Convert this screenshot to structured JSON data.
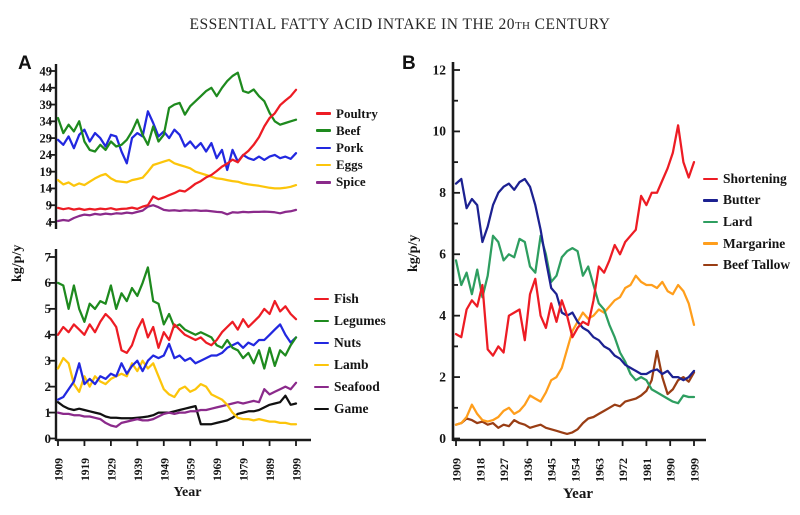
{
  "title": {
    "part1": "ESSENTIAL FATTY ACID INTAKE IN THE 20",
    "th": "TH",
    "part2": " CENTURY"
  },
  "panels": [
    {
      "label": "A",
      "ylabel": "kg/p/y",
      "xlabel": "Year"
    },
    {
      "label": "B",
      "ylabel": "kg/p/y",
      "xlabel": "Year"
    }
  ],
  "axis_color": "#1a1a1a",
  "chart_data": [
    {
      "id": "a-top",
      "panel": "A",
      "type": "line",
      "ylabel": "kg/p/y",
      "xlabel": "Year",
      "ylim": [
        4,
        49
      ],
      "y_ticks": [
        4,
        9,
        14,
        19,
        24,
        29,
        34,
        39,
        44,
        49
      ],
      "x_ticks": [
        1909,
        1919,
        1929,
        1939,
        1949,
        1959,
        1969,
        1979,
        1989,
        1999
      ],
      "x": [
        1909,
        1911,
        1913,
        1915,
        1917,
        1919,
        1921,
        1923,
        1925,
        1927,
        1929,
        1931,
        1933,
        1935,
        1937,
        1939,
        1941,
        1943,
        1945,
        1947,
        1949,
        1951,
        1953,
        1955,
        1957,
        1959,
        1961,
        1963,
        1965,
        1967,
        1969,
        1971,
        1973,
        1975,
        1977,
        1979,
        1981,
        1983,
        1985,
        1987,
        1989,
        1991,
        1993,
        1995,
        1997,
        1999
      ],
      "series": [
        {
          "name": "Poultry",
          "color": "#ed1c24",
          "values": [
            8.2,
            7.8,
            8.1,
            7.7,
            8.0,
            7.6,
            7.9,
            7.7,
            8.0,
            7.8,
            8.1,
            7.7,
            7.9,
            8.0,
            8.3,
            7.9,
            8.6,
            9.0,
            11.6,
            10.8,
            11.3,
            12.0,
            12.6,
            13.4,
            13.1,
            14.2,
            15.4,
            16.2,
            17.3,
            18.0,
            19.2,
            20.5,
            21.4,
            22.6,
            21.8,
            23.9,
            25.2,
            27.0,
            29.3,
            32.5,
            35.0,
            36.4,
            38.8,
            40.2,
            41.5,
            43.4
          ]
        },
        {
          "name": "Beef",
          "color": "#1e8a1e",
          "values": [
            35.0,
            30.5,
            33.0,
            31.0,
            34.0,
            28.0,
            25.5,
            25.0,
            27.0,
            25.5,
            28.0,
            26.5,
            27.0,
            28.5,
            31.0,
            34.5,
            30.0,
            27.0,
            32.5,
            28.0,
            30.0,
            38.0,
            39.0,
            39.5,
            36.0,
            38.5,
            40.0,
            41.5,
            43.0,
            44.0,
            41.5,
            44.0,
            46.0,
            47.5,
            48.5,
            43.0,
            42.5,
            43.5,
            41.5,
            40.0,
            36.5,
            34.0,
            33.0,
            33.5,
            34.0,
            34.5
          ]
        },
        {
          "name": "Pork",
          "color": "#2228e0",
          "values": [
            28.5,
            27.0,
            29.5,
            26.0,
            30.0,
            31.5,
            28.0,
            30.5,
            29.0,
            26.5,
            30.0,
            29.5,
            25.0,
            21.5,
            29.0,
            30.5,
            29.5,
            37.0,
            33.5,
            29.5,
            31.0,
            29.0,
            31.5,
            30.0,
            26.5,
            28.0,
            26.0,
            27.5,
            25.0,
            27.5,
            23.0,
            25.5,
            19.5,
            25.5,
            22.0,
            24.0,
            23.0,
            22.5,
            23.5,
            22.5,
            23.5,
            24.0,
            23.0,
            23.5,
            22.8,
            24.5
          ]
        },
        {
          "name": "Eggs",
          "color": "#fcc50b",
          "values": [
            16.5,
            15.2,
            15.8,
            14.8,
            15.5,
            15.0,
            16.0,
            17.0,
            17.8,
            18.3,
            17.0,
            16.2,
            16.0,
            15.8,
            16.5,
            16.8,
            17.2,
            19.0,
            21.0,
            21.5,
            22.0,
            22.5,
            21.5,
            21.0,
            20.5,
            20.0,
            19.0,
            18.5,
            18.0,
            17.5,
            17.0,
            16.8,
            16.5,
            16.2,
            16.0,
            15.5,
            15.2,
            15.0,
            14.8,
            14.5,
            14.2,
            14.0,
            14.0,
            14.2,
            14.5,
            15.0
          ]
        },
        {
          "name": "Spice",
          "color": "#8b2a8b",
          "values": [
            4.3,
            4.6,
            4.4,
            5.2,
            5.8,
            6.2,
            6.0,
            6.4,
            6.2,
            6.5,
            6.3,
            6.6,
            6.5,
            6.8,
            6.6,
            7.0,
            7.4,
            8.6,
            9.0,
            8.4,
            7.6,
            7.4,
            7.5,
            7.3,
            7.5,
            7.4,
            7.5,
            7.3,
            7.4,
            7.2,
            7.0,
            6.9,
            6.3,
            6.9,
            6.8,
            7.0,
            6.9,
            7.0,
            7.0,
            7.1,
            7.0,
            6.9,
            6.6,
            7.0,
            7.2,
            7.6
          ]
        }
      ]
    },
    {
      "id": "a-bottom",
      "panel": "A",
      "type": "line",
      "ylabel": "kg/p/y",
      "xlabel": "Year",
      "ylim": [
        0,
        7
      ],
      "y_ticks": [
        0,
        1,
        2,
        3,
        4,
        5,
        6,
        7
      ],
      "x_ticks": [
        1909,
        1919,
        1929,
        1939,
        1949,
        1959,
        1969,
        1979,
        1989,
        1999
      ],
      "x": [
        1909,
        1911,
        1913,
        1915,
        1917,
        1919,
        1921,
        1923,
        1925,
        1927,
        1929,
        1931,
        1933,
        1935,
        1937,
        1939,
        1941,
        1943,
        1945,
        1947,
        1949,
        1951,
        1953,
        1955,
        1957,
        1959,
        1961,
        1963,
        1965,
        1967,
        1969,
        1971,
        1973,
        1975,
        1977,
        1979,
        1981,
        1983,
        1985,
        1987,
        1989,
        1991,
        1993,
        1995,
        1997,
        1999
      ],
      "series": [
        {
          "name": "Fish",
          "color": "#ed1c24",
          "values": [
            4.0,
            4.3,
            4.1,
            4.4,
            4.2,
            4.0,
            4.4,
            4.1,
            4.5,
            4.8,
            4.6,
            4.3,
            3.4,
            3.3,
            3.6,
            4.2,
            4.6,
            3.9,
            4.3,
            3.5,
            4.1,
            3.8,
            4.4,
            4.2,
            4.0,
            3.9,
            3.8,
            3.9,
            3.7,
            3.6,
            3.8,
            4.1,
            4.3,
            4.5,
            4.2,
            4.6,
            4.3,
            4.5,
            4.7,
            5.0,
            4.8,
            5.3,
            4.9,
            5.1,
            4.8,
            4.6
          ]
        },
        {
          "name": "Legumes",
          "color": "#1e8a1e",
          "values": [
            6.0,
            5.9,
            5.0,
            5.9,
            5.0,
            4.5,
            5.2,
            5.0,
            5.3,
            5.2,
            5.9,
            5.0,
            5.6,
            5.3,
            5.8,
            5.5,
            6.0,
            6.6,
            5.3,
            5.2,
            4.4,
            4.8,
            4.3,
            4.4,
            4.2,
            4.1,
            4.0,
            4.1,
            4.0,
            3.9,
            3.6,
            3.5,
            3.8,
            3.5,
            3.4,
            3.1,
            3.3,
            2.9,
            3.4,
            2.7,
            3.5,
            2.8,
            3.4,
            3.2,
            3.6,
            3.9
          ]
        },
        {
          "name": "Nuts",
          "color": "#2228e0",
          "values": [
            1.5,
            1.6,
            1.9,
            2.2,
            2.9,
            2.1,
            2.3,
            2.1,
            2.4,
            2.3,
            2.5,
            2.4,
            2.9,
            2.5,
            2.8,
            3.0,
            2.6,
            3.0,
            3.2,
            3.1,
            3.2,
            3.65,
            3.1,
            3.2,
            3.0,
            3.1,
            2.9,
            3.0,
            3.1,
            3.2,
            3.2,
            3.3,
            3.5,
            3.6,
            3.7,
            3.5,
            3.7,
            3.6,
            3.8,
            3.8,
            4.0,
            4.2,
            4.4,
            4.0,
            3.7,
            3.9
          ]
        },
        {
          "name": "Lamb",
          "color": "#fcc50b",
          "values": [
            2.7,
            3.1,
            2.9,
            2.1,
            1.8,
            2.4,
            2.0,
            2.4,
            2.2,
            2.1,
            2.3,
            2.4,
            2.5,
            2.4,
            2.9,
            2.6,
            3.0,
            2.7,
            2.9,
            2.4,
            1.9,
            1.7,
            1.6,
            1.9,
            2.0,
            1.8,
            1.9,
            2.1,
            2.0,
            1.7,
            1.6,
            1.5,
            1.3,
            1.0,
            0.8,
            0.75,
            0.75,
            0.7,
            0.75,
            0.7,
            0.65,
            0.65,
            0.6,
            0.6,
            0.55,
            0.55
          ]
        },
        {
          "name": "Seafood",
          "color": "#8b2a8b",
          "values": [
            1.0,
            0.95,
            0.95,
            0.9,
            0.9,
            0.85,
            0.85,
            0.8,
            0.75,
            0.6,
            0.5,
            0.45,
            0.6,
            0.65,
            0.7,
            0.75,
            0.7,
            0.7,
            0.75,
            0.85,
            0.95,
            1.0,
            0.95,
            1.0,
            1.0,
            1.05,
            1.05,
            1.1,
            1.1,
            1.15,
            1.2,
            1.25,
            1.3,
            1.35,
            1.4,
            1.35,
            1.4,
            1.45,
            1.4,
            1.9,
            1.7,
            1.8,
            1.9,
            2.0,
            1.9,
            2.15
          ]
        },
        {
          "name": "Game",
          "color": "#111111",
          "values": [
            1.4,
            1.25,
            1.15,
            1.1,
            1.15,
            1.1,
            1.05,
            1.0,
            0.95,
            0.85,
            0.8,
            0.8,
            0.78,
            0.78,
            0.78,
            0.8,
            0.82,
            0.85,
            0.9,
            1.0,
            1.0,
            1.0,
            1.05,
            1.1,
            1.15,
            1.2,
            1.25,
            0.55,
            0.55,
            0.55,
            0.6,
            0.65,
            0.7,
            0.8,
            0.95,
            1.0,
            1.05,
            1.05,
            1.1,
            1.2,
            1.3,
            1.35,
            1.4,
            1.65,
            1.3,
            1.35
          ]
        }
      ]
    },
    {
      "id": "b",
      "panel": "B",
      "type": "line",
      "ylabel": "kg/p/y",
      "xlabel": "Year",
      "ylim": [
        0,
        12
      ],
      "y_ticks": [
        0,
        2,
        4,
        6,
        8,
        10,
        12
      ],
      "y_minor_ticks": [
        1,
        3,
        5,
        7,
        9,
        11
      ],
      "x_ticks": [
        1909,
        1918,
        1927,
        1936,
        1945,
        1954,
        1963,
        1972,
        1981,
        1990,
        1999
      ],
      "x": [
        1909,
        1911,
        1913,
        1915,
        1917,
        1919,
        1921,
        1923,
        1925,
        1927,
        1929,
        1931,
        1933,
        1935,
        1937,
        1939,
        1941,
        1943,
        1945,
        1947,
        1949,
        1951,
        1953,
        1955,
        1957,
        1959,
        1961,
        1963,
        1965,
        1967,
        1969,
        1971,
        1973,
        1975,
        1977,
        1979,
        1981,
        1983,
        1985,
        1987,
        1989,
        1991,
        1993,
        1995,
        1997,
        1999
      ],
      "series": [
        {
          "name": "Shortening",
          "color": "#ed1c24",
          "values": [
            3.4,
            3.3,
            4.2,
            4.5,
            4.3,
            5.0,
            2.9,
            2.7,
            3.0,
            2.8,
            4.0,
            4.1,
            4.2,
            3.2,
            4.7,
            5.2,
            4.0,
            3.6,
            4.4,
            3.8,
            4.5,
            4.0,
            3.3,
            3.6,
            3.8,
            3.7,
            4.5,
            5.6,
            5.4,
            5.8,
            6.3,
            6.0,
            6.4,
            6.6,
            6.8,
            7.9,
            7.6,
            8.0,
            8.0,
            8.4,
            8.8,
            9.3,
            10.2,
            9.0,
            8.5,
            9.0
          ]
        },
        {
          "name": "Butter",
          "color": "#1c2191",
          "values": [
            8.3,
            8.45,
            7.5,
            7.8,
            7.6,
            6.4,
            6.9,
            7.6,
            8.0,
            8.2,
            8.3,
            8.1,
            8.35,
            8.45,
            8.2,
            7.6,
            6.8,
            5.8,
            4.9,
            4.7,
            4.1,
            4.0,
            4.1,
            3.8,
            3.6,
            3.5,
            3.3,
            3.2,
            3.0,
            2.9,
            2.7,
            2.6,
            2.4,
            2.3,
            2.2,
            2.1,
            2.1,
            2.2,
            2.25,
            2.1,
            2.2,
            2.0,
            2.0,
            1.9,
            2.0,
            2.2
          ]
        },
        {
          "name": "Lard",
          "color": "#2e9e60",
          "values": [
            5.8,
            5.0,
            5.4,
            4.7,
            5.5,
            4.6,
            5.3,
            6.6,
            6.4,
            5.8,
            6.0,
            5.9,
            6.5,
            6.4,
            5.6,
            5.4,
            6.6,
            6.0,
            5.1,
            5.3,
            5.9,
            6.1,
            6.2,
            6.1,
            5.3,
            5.6,
            5.0,
            4.4,
            4.2,
            3.7,
            3.3,
            2.8,
            2.5,
            2.1,
            1.9,
            2.0,
            1.9,
            1.6,
            1.5,
            1.4,
            1.3,
            1.2,
            1.15,
            1.4,
            1.35,
            1.35
          ]
        },
        {
          "name": "Margarine",
          "color": "#ff9e1c",
          "values": [
            0.45,
            0.5,
            0.7,
            1.1,
            0.8,
            0.6,
            0.55,
            0.6,
            0.7,
            0.9,
            1.0,
            0.8,
            0.9,
            1.1,
            1.4,
            1.3,
            1.2,
            1.5,
            1.9,
            2.0,
            2.3,
            2.9,
            3.5,
            3.8,
            4.1,
            3.9,
            4.0,
            4.2,
            4.1,
            4.3,
            4.5,
            4.6,
            4.9,
            5.0,
            5.3,
            5.1,
            5.0,
            5.0,
            4.9,
            5.1,
            4.8,
            4.7,
            5.0,
            4.8,
            4.4,
            3.7
          ]
        },
        {
          "name": "Beef Tallow",
          "color": "#993d14",
          "values": [
            0.45,
            0.5,
            0.65,
            0.6,
            0.5,
            0.55,
            0.45,
            0.5,
            0.35,
            0.45,
            0.4,
            0.6,
            0.5,
            0.45,
            0.35,
            0.4,
            0.45,
            0.35,
            0.3,
            0.25,
            0.2,
            0.15,
            0.2,
            0.3,
            0.5,
            0.65,
            0.7,
            0.8,
            0.9,
            1.0,
            1.1,
            1.05,
            1.2,
            1.25,
            1.3,
            1.4,
            1.55,
            1.9,
            2.85,
            2.0,
            1.45,
            1.6,
            1.9,
            2.0,
            1.85,
            2.15
          ]
        }
      ]
    }
  ]
}
